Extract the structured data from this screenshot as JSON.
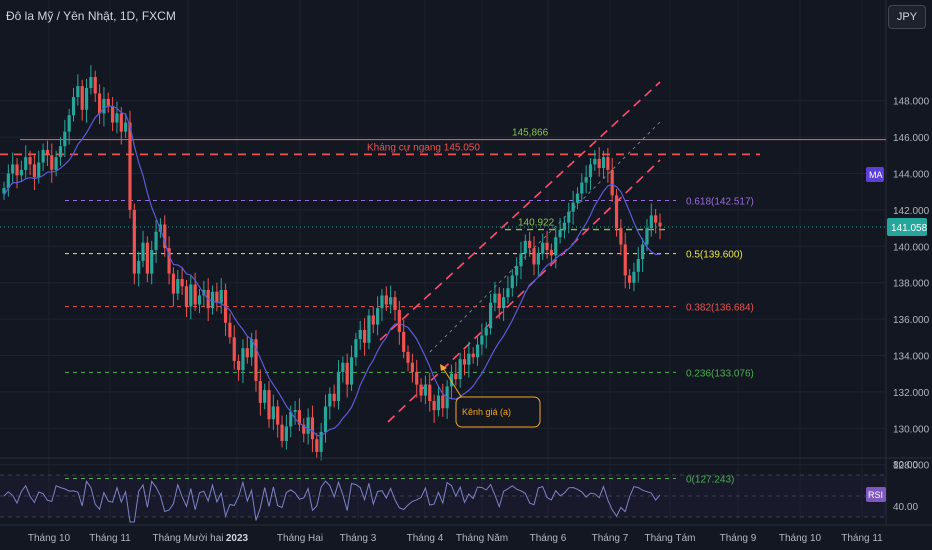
{
  "header": {
    "title": "Đô la Mỹ / Yên Nhật, 1D, FXCM",
    "currency_button": "JPY"
  },
  "badges": {
    "ma": "MA",
    "rsi": "RSI"
  },
  "colors": {
    "background": "#131722",
    "up": "#26a69a",
    "down": "#ef5350",
    "ma": "#5b5bd6",
    "rsi": "#7e82c9"
  },
  "annotations": {
    "resistance_label": "Kháng cự ngang 145.050",
    "high_label": "145,866",
    "level_label": "140.922",
    "channel_label": "Kênh giá (a)"
  },
  "chart_data": {
    "type": "candlestick",
    "symbol": "USDJPY",
    "x_labels": [
      "Tháng 10",
      "Tháng 11",
      "Tháng Mười hai",
      "2023",
      "Tháng Hai",
      "Tháng 3",
      "Tháng 4",
      "Tháng Năm",
      "Tháng 6",
      "Tháng 7",
      "Tháng Tám",
      "Tháng 9",
      "Tháng 10",
      "Tháng 11"
    ],
    "y_ticks": [
      "148.000",
      "146.000",
      "144.000",
      "142.000",
      "140.000",
      "138.000",
      "136.000",
      "134.000",
      "132.000",
      "130.000",
      "128.000"
    ],
    "last_price": "141.058",
    "ylim": [
      127,
      150
    ],
    "fibonacci": [
      {
        "label": "0.618(142.517)",
        "value": 142.517,
        "color": "#9c6ade"
      },
      {
        "label": "0.5(139.600)",
        "value": 139.6,
        "color": "#e8e54a"
      },
      {
        "label": "0.382(136.684)",
        "value": 136.684,
        "color": "#ef5350"
      },
      {
        "label": "0.236(133.076)",
        "value": 133.076,
        "color": "#4caf50"
      },
      {
        "label": "0(127.243)",
        "value": 127.243,
        "color": "#4caf50"
      }
    ],
    "resistance": 145.05,
    "high": 145.866,
    "support_level": 140.922,
    "rsi": {
      "y_ticks": [
        "80.00",
        "40.00"
      ]
    },
    "closes": [
      143.2,
      144.0,
      144.5,
      143.9,
      144.2,
      144.9,
      144.5,
      143.8,
      144.6,
      145.3,
      145.0,
      144.2,
      144.9,
      145.5,
      146.3,
      147.2,
      148.2,
      148.8,
      147.5,
      148.7,
      149.3,
      148.4,
      147.3,
      148.1,
      147.7,
      146.8,
      147.3,
      146.3,
      146.8,
      142.0,
      138.5,
      139.2,
      140.2,
      138.5,
      139.8,
      140.8,
      141.2,
      139.9,
      138.5,
      137.4,
      138.2,
      137.8,
      136.7,
      137.9,
      136.8,
      137.3,
      137.6,
      136.6,
      137.5,
      136.9,
      137.6,
      135.8,
      135.0,
      133.7,
      133.2,
      134.4,
      133.9,
      134.9,
      132.6,
      131.4,
      132.1,
      130.5,
      131.2,
      130.2,
      129.3,
      130.1,
      130.9,
      131.0,
      130.2,
      129.7,
      130.6,
      129.4,
      128.7,
      129.8,
      131.2,
      131.9,
      131.5,
      133.1,
      133.6,
      132.4,
      133.9,
      134.9,
      135.4,
      134.7,
      136.2,
      135.7,
      136.6,
      137.3,
      136.8,
      137.2,
      136.5,
      135.3,
      134.2,
      133.6,
      133.1,
      132.4,
      131.8,
      132.4,
      131.5,
      131.0,
      131.8,
      131.1,
      132.3,
      133.0,
      132.7,
      133.8,
      133.5,
      134.1,
      133.9,
      134.6,
      135.1,
      135.5,
      136.9,
      137.4,
      136.6,
      137.2,
      137.7,
      138.4,
      138.9,
      139.6,
      140.3,
      139.9,
      139.0,
      139.6,
      140.2,
      139.8,
      139.5,
      140.5,
      140.9,
      141.3,
      141.9,
      142.4,
      142.9,
      143.5,
      143.8,
      144.5,
      144.8,
      144.3,
      144.9,
      144.2,
      142.8,
      141.0,
      140.1,
      138.4,
      138.0,
      138.6,
      139.3,
      140.1,
      141.0,
      141.7,
      141.3,
      141.1
    ]
  }
}
